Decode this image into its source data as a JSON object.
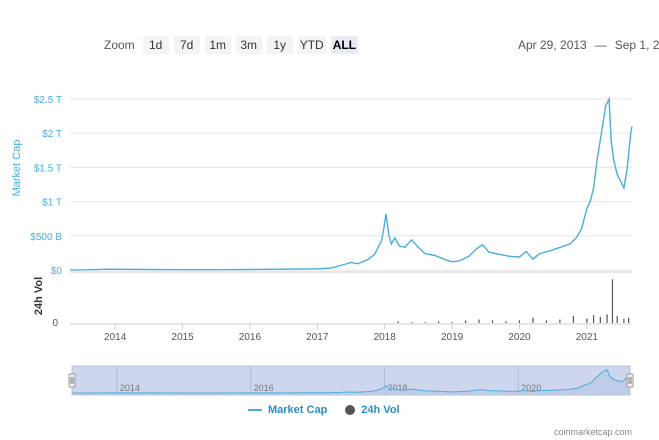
{
  "toolbar": {
    "zoom_label": "Zoom",
    "buttons": [
      "1d",
      "7d",
      "1m",
      "3m",
      "1y",
      "YTD",
      "ALL"
    ],
    "active_button": "ALL",
    "date_from": "Apr 29, 2013",
    "date_sep": "—",
    "date_to": "Sep 1, 2"
  },
  "legend": {
    "market_cap": "Market Cap",
    "vol": "24h Vol"
  },
  "credit": "coinmarketcap.com",
  "colors": {
    "line": "#4aaedc",
    "axis_label": "#4aaedc",
    "volume": "#555555",
    "navigator_fill": "#cdd6ec",
    "grid": "#e6e6e6"
  },
  "chart_data": [
    {
      "type": "line",
      "name": "market-cap",
      "ylabel": "Market Cap",
      "y_ticks": [
        "$0",
        "$500 B",
        "$1 T",
        "$1.5 T",
        "$2 T",
        "$2.5 T"
      ],
      "y_tick_values": [
        0,
        500,
        1000,
        1500,
        2000,
        2500
      ],
      "ylim": [
        0,
        2500
      ],
      "x_ticks": [
        "2014",
        "2015",
        "2016",
        "2017",
        "2018",
        "2019",
        "2020",
        "2021"
      ],
      "x_tick_values": [
        2014,
        2015,
        2016,
        2017,
        2018,
        2019,
        2020,
        2021
      ],
      "xlim": [
        2013.33,
        2021.67
      ],
      "grid": true,
      "x": [
        2013.33,
        2013.6,
        2013.9,
        2014.1,
        2014.5,
        2015.0,
        2015.5,
        2016.0,
        2016.5,
        2017.0,
        2017.2,
        2017.4,
        2017.5,
        2017.6,
        2017.75,
        2017.85,
        2017.95,
        2017.98,
        2018.02,
        2018.06,
        2018.1,
        2018.15,
        2018.22,
        2018.3,
        2018.4,
        2018.5,
        2018.6,
        2018.75,
        2018.9,
        2019.0,
        2019.1,
        2019.25,
        2019.35,
        2019.45,
        2019.55,
        2019.7,
        2019.85,
        2020.0,
        2020.1,
        2020.2,
        2020.3,
        2020.45,
        2020.6,
        2020.75,
        2020.85,
        2020.92,
        2021.0,
        2021.05,
        2021.1,
        2021.15,
        2021.2,
        2021.28,
        2021.33,
        2021.36,
        2021.4,
        2021.45,
        2021.5,
        2021.55,
        2021.6,
        2021.65,
        2021.67
      ],
      "values": [
        2,
        3,
        12,
        10,
        7,
        5,
        4,
        7,
        12,
        17,
        28,
        80,
        110,
        90,
        150,
        230,
        420,
        560,
        820,
        520,
        380,
        470,
        350,
        330,
        440,
        330,
        240,
        210,
        150,
        120,
        130,
        200,
        300,
        370,
        260,
        230,
        200,
        190,
        270,
        160,
        240,
        280,
        330,
        380,
        480,
        600,
        900,
        1000,
        1200,
        1600,
        1900,
        2400,
        2500,
        1900,
        1600,
        1400,
        1300,
        1200,
        1500,
        2000,
        2100
      ]
    },
    {
      "type": "bar",
      "name": "volume",
      "ylabel": "24h Vol",
      "y_ticks": [
        "0"
      ],
      "x": [
        2018.2,
        2018.4,
        2018.6,
        2018.8,
        2019.0,
        2019.2,
        2019.4,
        2019.6,
        2019.8,
        2020.0,
        2020.2,
        2020.4,
        2020.6,
        2020.8,
        2021.0,
        2021.1,
        2021.2,
        2021.3,
        2021.38,
        2021.45,
        2021.55,
        2021.62
      ],
      "values": [
        2,
        1,
        1,
        2,
        1,
        3,
        4,
        3,
        2,
        3,
        6,
        3,
        4,
        8,
        5,
        9,
        7,
        10,
        50,
        8,
        5,
        6
      ],
      "ylim": [
        0,
        55
      ]
    },
    {
      "type": "area",
      "name": "navigator",
      "x_ticks": [
        "2014",
        "2016",
        "2018",
        "2020"
      ],
      "x_tick_values": [
        2014,
        2016,
        2018,
        2020
      ]
    }
  ]
}
